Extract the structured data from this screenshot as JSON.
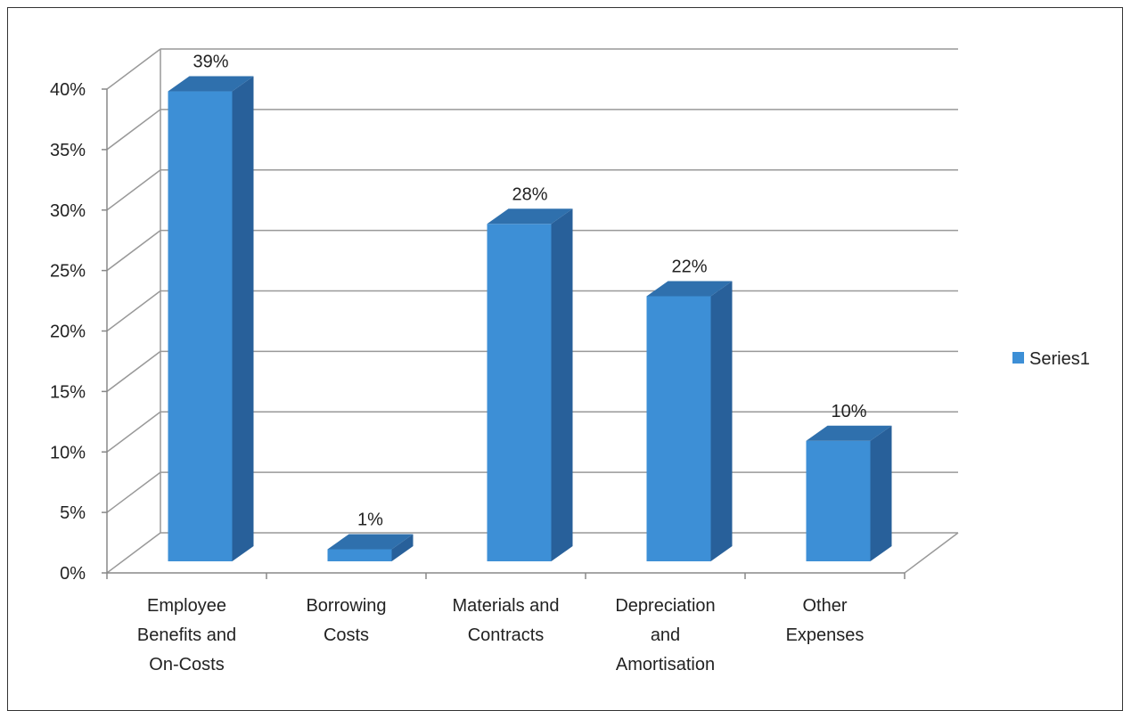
{
  "chart_data": {
    "type": "bar",
    "style": "3d-column",
    "categories": [
      [
        "Employee",
        "Benefits and",
        "On-Costs"
      ],
      [
        "Borrowing",
        "Costs"
      ],
      [
        "Materials and",
        "Contracts"
      ],
      [
        "Depreciation",
        "and",
        "Amortisation"
      ],
      [
        "Other",
        "Expenses"
      ]
    ],
    "series": [
      {
        "name": "Series1",
        "values": [
          39,
          1,
          28,
          22,
          10
        ],
        "color": "#3d8fd6"
      }
    ],
    "data_labels": [
      "39%",
      "1%",
      "28%",
      "22%",
      "10%"
    ],
    "y_ticks": [
      "0%",
      "5%",
      "10%",
      "15%",
      "20%",
      "25%",
      "30%",
      "35%",
      "40%"
    ],
    "ylim": [
      0,
      40
    ],
    "grid": true,
    "legend": "right",
    "colors": {
      "bar_front": "#3d8fd6",
      "bar_top": "#2f70ad",
      "bar_side": "#28609a",
      "grid": "#999999"
    }
  }
}
